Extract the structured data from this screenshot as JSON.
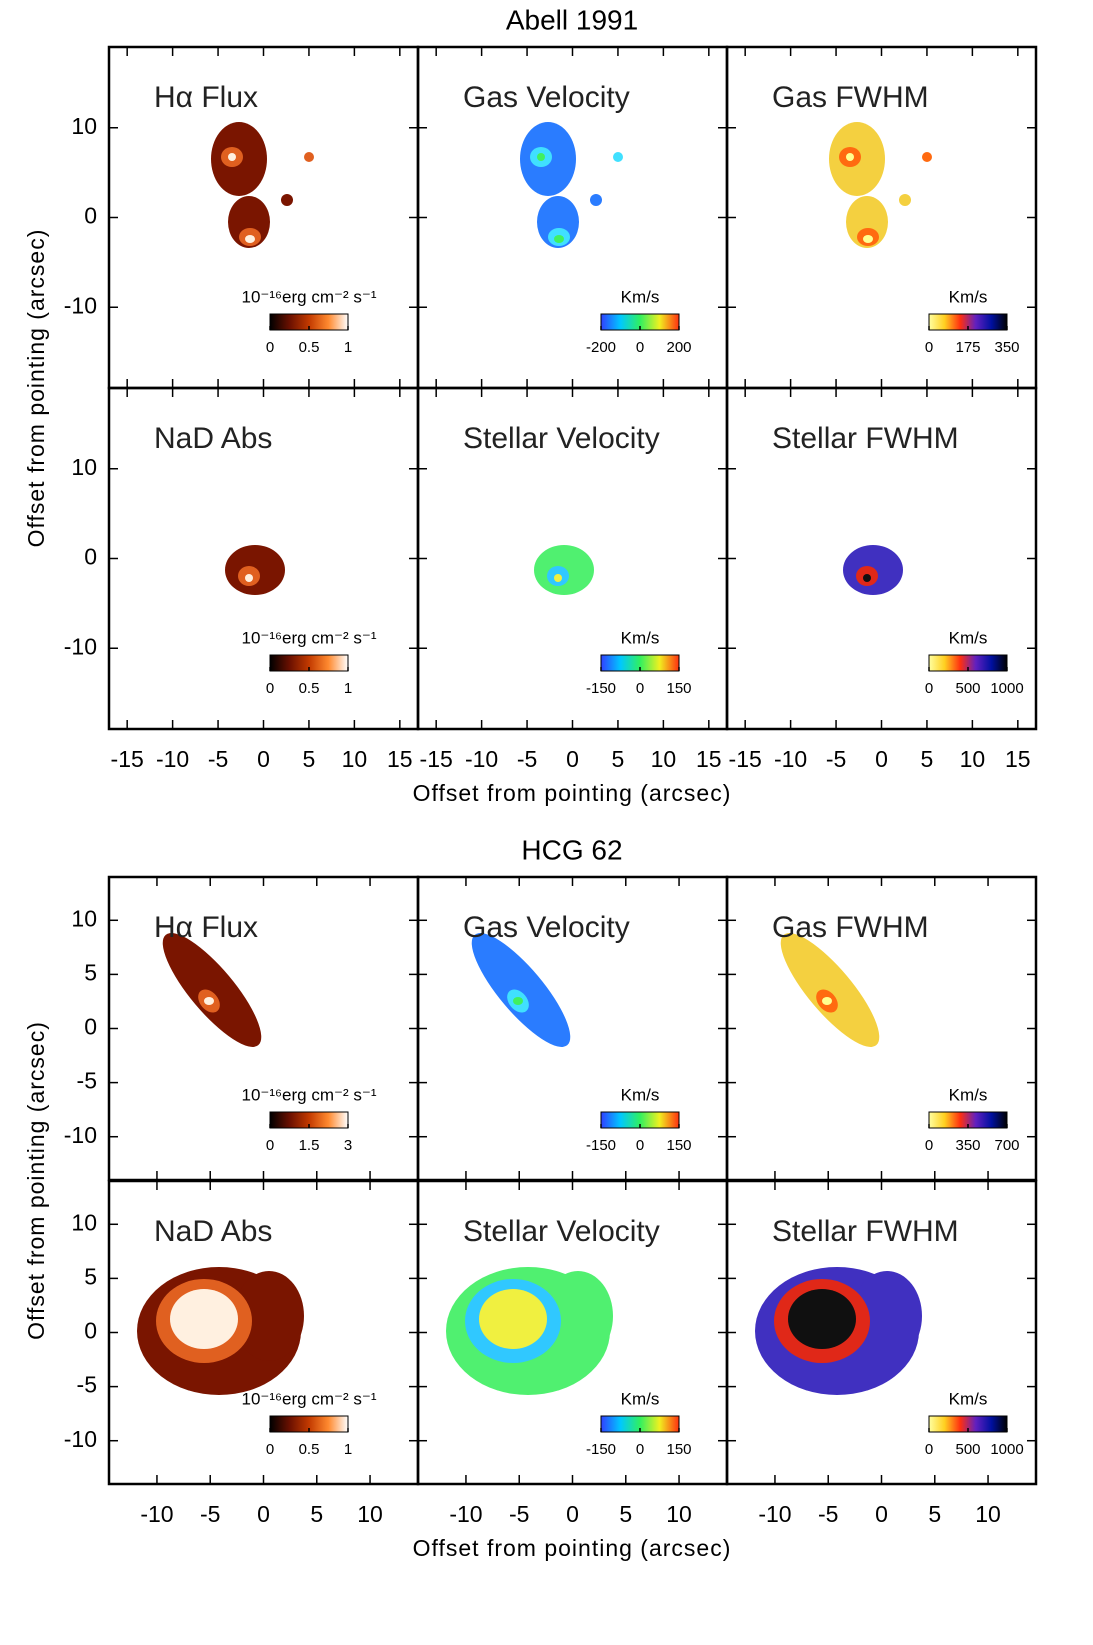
{
  "chart_data": [
    {
      "type": "image_grid",
      "title": "Abell 1991",
      "x_label": "Offset from pointing (arcsec)",
      "y_label": "Offset from pointing (arcsec)",
      "xlim": [
        -17,
        17
      ],
      "ylim": [
        -19,
        19
      ],
      "xticks": [
        -15,
        -10,
        -5,
        0,
        5,
        10,
        15
      ],
      "yticks": [
        -10,
        0,
        10
      ],
      "panels": [
        {
          "title": "Hα Flux",
          "unit": "10⁻¹⁶erg cm⁻² s⁻¹",
          "clim": [
            0,
            1
          ],
          "cticks": [
            0,
            0.5,
            1
          ],
          "colors": [
            "#000000",
            "#6a1000",
            "#c23a00",
            "#ff8a30",
            "#ffffff"
          ]
        },
        {
          "title": "Gas Velocity",
          "unit": "Km/s",
          "clim": [
            -200,
            200
          ],
          "cticks": [
            -200,
            0,
            200
          ],
          "colors": [
            "#3040ff",
            "#00c8ff",
            "#30f060",
            "#f0f020",
            "#ff3010"
          ]
        },
        {
          "title": "Gas FWHM",
          "unit": "Km/s",
          "clim": [
            0,
            350
          ],
          "cticks": [
            0,
            175,
            350
          ],
          "colors": [
            "#ffffa0",
            "#ffd020",
            "#ff3010",
            "#6020c0",
            "#0010a0",
            "#000000"
          ]
        },
        {
          "title": "NaD Abs",
          "unit": "10⁻¹⁶erg cm⁻² s⁻¹",
          "clim": [
            0,
            1
          ],
          "cticks": [
            0,
            0.5,
            1
          ],
          "colors": [
            "#000000",
            "#6a1000",
            "#c23a00",
            "#ff8a30",
            "#ffffff"
          ]
        },
        {
          "title": "Stellar Velocity",
          "unit": "Km/s",
          "clim": [
            -150,
            150
          ],
          "cticks": [
            -150,
            0,
            150
          ],
          "colors": [
            "#3040ff",
            "#00c8ff",
            "#30f060",
            "#f0f020",
            "#ff3010"
          ]
        },
        {
          "title": "Stellar FWHM",
          "unit": "Km/s",
          "clim": [
            0,
            1000
          ],
          "cticks": [
            0,
            500,
            1000
          ],
          "colors": [
            "#ffffa0",
            "#ffd020",
            "#ff3010",
            "#6020c0",
            "#0010a0",
            "#000000"
          ]
        }
      ]
    },
    {
      "type": "image_grid",
      "title": "HCG 62",
      "x_label": "Offset from pointing (arcsec)",
      "y_label": "Offset from pointing (arcsec)",
      "xlim": [
        -14.5,
        14.5
      ],
      "ylim": [
        -14,
        14
      ],
      "xticks": [
        -10,
        -5,
        0,
        5,
        10
      ],
      "yticks": [
        -10,
        -5,
        0,
        5,
        10
      ],
      "panels": [
        {
          "title": "Hα Flux",
          "unit": "10⁻¹⁶erg cm⁻² s⁻¹",
          "clim": [
            0,
            3
          ],
          "cticks": [
            0,
            1.5,
            3
          ],
          "colors": [
            "#000000",
            "#6a1000",
            "#c23a00",
            "#ff8a30",
            "#ffffff"
          ]
        },
        {
          "title": "Gas Velocity",
          "unit": "Km/s",
          "clim": [
            -150,
            150
          ],
          "cticks": [
            -150,
            0,
            150
          ],
          "colors": [
            "#3040ff",
            "#00c8ff",
            "#30f060",
            "#f0f020",
            "#ff3010"
          ]
        },
        {
          "title": "Gas FWHM",
          "unit": "Km/s",
          "clim": [
            0,
            700
          ],
          "cticks": [
            0,
            350,
            700
          ],
          "colors": [
            "#ffffa0",
            "#ffd020",
            "#ff3010",
            "#6020c0",
            "#0010a0",
            "#000000"
          ]
        },
        {
          "title": "NaD Abs",
          "unit": "10⁻¹⁶erg cm⁻² s⁻¹",
          "clim": [
            0,
            1
          ],
          "cticks": [
            0,
            0.5,
            1
          ],
          "colors": [
            "#000000",
            "#6a1000",
            "#c23a00",
            "#ff8a30",
            "#ffffff"
          ]
        },
        {
          "title": "Stellar Velocity",
          "unit": "Km/s",
          "clim": [
            -150,
            150
          ],
          "cticks": [
            -150,
            0,
            150
          ],
          "colors": [
            "#3040ff",
            "#00c8ff",
            "#30f060",
            "#f0f020",
            "#ff3010"
          ]
        },
        {
          "title": "Stellar FWHM",
          "unit": "Km/s",
          "clim": [
            0,
            1000
          ],
          "cticks": [
            0,
            500,
            1000
          ],
          "colors": [
            "#ffffa0",
            "#ffd020",
            "#ff3010",
            "#6020c0",
            "#0010a0",
            "#000000"
          ]
        }
      ]
    }
  ]
}
